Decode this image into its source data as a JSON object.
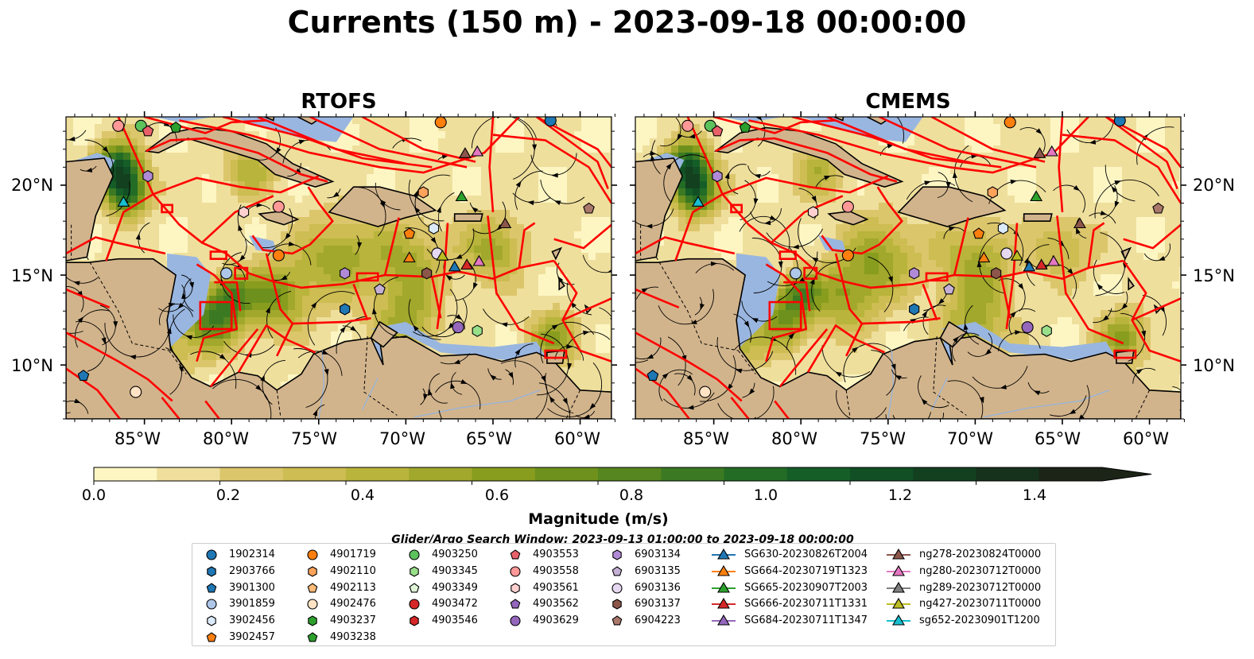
{
  "title": "Currents (150 m) - 2023-09-18 00:00:00",
  "panels": [
    {
      "title": "RTOFS"
    },
    {
      "title": "CMEMS"
    }
  ],
  "lat_labels": [
    "20°N",
    "15°N",
    "10°N"
  ],
  "lon_labels": [
    "85°W",
    "80°W",
    "75°W",
    "70°W",
    "65°W",
    "60°W"
  ],
  "colorbar": {
    "label": "Magnitude (m/s)",
    "ticks": [
      "0.0",
      "0.2",
      "0.4",
      "0.6",
      "0.8",
      "1.0",
      "1.2",
      "1.4"
    ],
    "range": [
      0,
      1.6
    ],
    "extend": "max",
    "colors": [
      "#fdf6c3",
      "#efdf9d",
      "#dcc66c",
      "#cdbd52",
      "#b9b43b",
      "#a1a82c",
      "#889d1e",
      "#6e911d",
      "#55861f",
      "#3b7a22",
      "#236c26",
      "#155e28",
      "#124f24",
      "#13401f",
      "#16311c",
      "#1b2417"
    ]
  },
  "search_window": "Glider/Argo Search Window: 2023-09-13 01:00:00 to 2023-09-18 00:00:00",
  "colors": {
    "land": "#d2b48c",
    "shallow_water": "#99b6e0",
    "boundary": "#ff0000"
  },
  "legend": {
    "columns": [
      [
        {
          "label": "1902314",
          "marker": "circle",
          "color": "#1f77b4"
        },
        {
          "label": "2903766",
          "marker": "hexagon",
          "color": "#1f77b4"
        },
        {
          "label": "3901300",
          "marker": "pentagon",
          "color": "#1f77b4"
        },
        {
          "label": "3901859",
          "marker": "circle",
          "color": "#aec7e8"
        },
        {
          "label": "3902456",
          "marker": "hexagon",
          "color": "#dbeafa"
        },
        {
          "label": "3902457",
          "marker": "pentagon",
          "color": "#ff7f0e"
        }
      ],
      [
        {
          "label": "4901719",
          "marker": "circle",
          "color": "#ff7f0e"
        },
        {
          "label": "4902110",
          "marker": "hexagon",
          "color": "#ffa35c"
        },
        {
          "label": "4902113",
          "marker": "pentagon",
          "color": "#ffbb78"
        },
        {
          "label": "4902476",
          "marker": "circle",
          "color": "#ffe3c4"
        },
        {
          "label": "4903237",
          "marker": "hexagon",
          "color": "#2ca02c"
        },
        {
          "label": "4903238",
          "marker": "pentagon",
          "color": "#2ca02c"
        }
      ],
      [
        {
          "label": "4903250",
          "marker": "circle",
          "color": "#5cc25c"
        },
        {
          "label": "4903345",
          "marker": "hexagon",
          "color": "#98df8a"
        },
        {
          "label": "4903349",
          "marker": "pentagon",
          "color": "#dff5d8"
        },
        {
          "label": "4903472",
          "marker": "circle",
          "color": "#d62728"
        },
        {
          "label": "4903546",
          "marker": "hexagon",
          "color": "#d62728"
        }
      ],
      [
        {
          "label": "4903553",
          "marker": "pentagon",
          "color": "#e8606a"
        },
        {
          "label": "4903558",
          "marker": "circle",
          "color": "#ff9896"
        },
        {
          "label": "4903561",
          "marker": "hexagon",
          "color": "#ffd0cf"
        },
        {
          "label": "4903562",
          "marker": "pentagon",
          "color": "#9467bd"
        },
        {
          "label": "4903629",
          "marker": "circle",
          "color": "#9467bd"
        }
      ],
      [
        {
          "label": "6903134",
          "marker": "hexagon",
          "color": "#b08ad6"
        },
        {
          "label": "6903135",
          "marker": "pentagon",
          "color": "#c5b0d5"
        },
        {
          "label": "6903136",
          "marker": "circle",
          "color": "#e6d8f0"
        },
        {
          "label": "6903137",
          "marker": "hexagon",
          "color": "#8c564b"
        },
        {
          "label": "6904223",
          "marker": "pentagon",
          "color": "#a9786b"
        }
      ],
      [
        {
          "label": "SG630-20230826T2004",
          "marker": "triangle",
          "color": "#1f77b4"
        },
        {
          "label": "SG664-20230719T1323",
          "marker": "triangle",
          "color": "#ff7f0e"
        },
        {
          "label": "SG665-20230907T2003",
          "marker": "triangle",
          "color": "#2ca02c"
        },
        {
          "label": "SG666-20230711T1331",
          "marker": "triangle",
          "color": "#d62728"
        },
        {
          "label": "SG684-20230711T1347",
          "marker": "triangle",
          "color": "#9467bd"
        }
      ],
      [
        {
          "label": "ng278-20230824T0000",
          "marker": "triangle",
          "color": "#8c564b"
        },
        {
          "label": "ng280-20230712T0000",
          "marker": "triangle",
          "color": "#e377c2"
        },
        {
          "label": "ng289-20230712T0000",
          "marker": "triangle",
          "color": "#7f7f7f"
        },
        {
          "label": "ng427-20230711T0000",
          "marker": "triangle",
          "color": "#bcbd22"
        },
        {
          "label": "sg652-20230901T1200",
          "marker": "triangle",
          "color": "#17becf"
        }
      ]
    ]
  },
  "map_markers": [
    {
      "lon": -85.2,
      "lat": 23.3,
      "marker": "circle",
      "color": "#5cc25c"
    },
    {
      "lon": -86.5,
      "lat": 23.3,
      "marker": "circle",
      "color": "#ff9896"
    },
    {
      "lon": -84.8,
      "lat": 23.0,
      "marker": "pentagon",
      "color": "#e8606a"
    },
    {
      "lon": -83.2,
      "lat": 23.2,
      "marker": "pentagon",
      "color": "#2ca02c"
    },
    {
      "lon": -84.8,
      "lat": 20.5,
      "marker": "hexagon",
      "color": "#b08ad6"
    },
    {
      "lon": -86.2,
      "lat": 19.1,
      "marker": "triangle",
      "color": "#17becf"
    },
    {
      "lon": -79.3,
      "lat": 18.5,
      "marker": "hexagon",
      "color": "#ffd0cf"
    },
    {
      "lon": -77.3,
      "lat": 18.8,
      "marker": "circle",
      "color": "#ff9896"
    },
    {
      "lon": -77.3,
      "lat": 16.1,
      "marker": "circle",
      "color": "#ff7f0e"
    },
    {
      "lon": -80.3,
      "lat": 15.1,
      "marker": "circle",
      "color": "#aec7e8"
    },
    {
      "lon": -73.5,
      "lat": 15.1,
      "marker": "hexagon",
      "color": "#b08ad6"
    },
    {
      "lon": -71.5,
      "lat": 14.2,
      "marker": "pentagon",
      "color": "#c5b0d5"
    },
    {
      "lon": -73.5,
      "lat": 13.1,
      "marker": "hexagon",
      "color": "#1f77b4"
    },
    {
      "lon": -69.0,
      "lat": 19.6,
      "marker": "hexagon",
      "color": "#ffa35c"
    },
    {
      "lon": -69.8,
      "lat": 17.3,
      "marker": "pentagon",
      "color": "#ff7f0e"
    },
    {
      "lon": -68.4,
      "lat": 17.6,
      "marker": "hexagon",
      "color": "#dbeafa"
    },
    {
      "lon": -69.8,
      "lat": 16.0,
      "marker": "triangle",
      "color": "#ff7f0e"
    },
    {
      "lon": -68.2,
      "lat": 16.2,
      "marker": "circle",
      "color": "#e6d8f0"
    },
    {
      "lon": -67.9,
      "lat": 16.1,
      "marker": "triangle",
      "color": "#bcbd22"
    },
    {
      "lon": -68.8,
      "lat": 15.1,
      "marker": "hexagon",
      "color": "#8c564b"
    },
    {
      "lon": -67.2,
      "lat": 15.5,
      "marker": "triangle",
      "color": "#1f77b4"
    },
    {
      "lon": -66.5,
      "lat": 15.6,
      "marker": "triangle",
      "color": "#d62728"
    },
    {
      "lon": -65.8,
      "lat": 15.8,
      "marker": "triangle",
      "color": "#e377c2"
    },
    {
      "lon": -66.8,
      "lat": 19.4,
      "marker": "triangle",
      "color": "#2ca02c"
    },
    {
      "lon": -66.6,
      "lat": 21.8,
      "marker": "triangle",
      "color": "#8c564b"
    },
    {
      "lon": -65.9,
      "lat": 21.9,
      "marker": "triangle",
      "color": "#e377c2"
    },
    {
      "lon": -68.0,
      "lat": 23.5,
      "marker": "circle",
      "color": "#ff7f0e"
    },
    {
      "lon": -64.3,
      "lat": 17.9,
      "marker": "triangle",
      "color": "#8c564b"
    },
    {
      "lon": -59.5,
      "lat": 18.7,
      "marker": "pentagon",
      "color": "#a9786b"
    },
    {
      "lon": -61.7,
      "lat": 23.6,
      "marker": "circle",
      "color": "#1f77b4"
    },
    {
      "lon": -67.0,
      "lat": 12.1,
      "marker": "circle",
      "color": "#9467bd"
    },
    {
      "lon": -65.9,
      "lat": 11.9,
      "marker": "hexagon",
      "color": "#98df8a"
    },
    {
      "lon": -88.5,
      "lat": 9.4,
      "marker": "pentagon",
      "color": "#1f77b4"
    },
    {
      "lon": -85.5,
      "lat": 8.5,
      "marker": "circle",
      "color": "#ffe3c4"
    }
  ]
}
